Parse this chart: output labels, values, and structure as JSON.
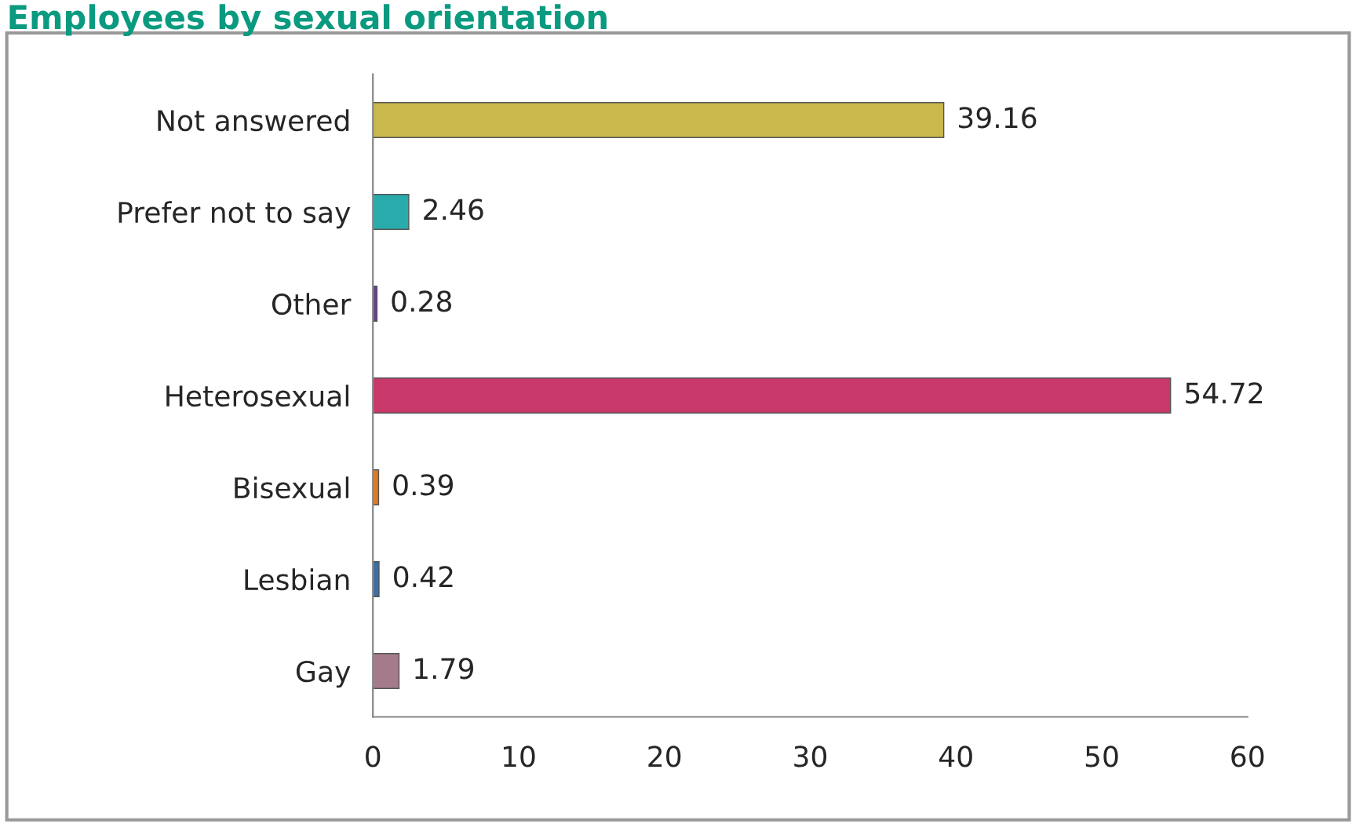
{
  "chart_data": {
    "type": "bar",
    "orientation": "horizontal",
    "title": "Employees by sexual orientation",
    "categories": [
      "Not answered",
      "Prefer not to say",
      "Other",
      "Heterosexual",
      "Bisexual",
      "Lesbian",
      "Gay"
    ],
    "values": [
      39.16,
      2.46,
      0.28,
      54.72,
      0.39,
      0.42,
      1.79
    ],
    "colors": [
      "#c9b94c",
      "#2aabab",
      "#6b3f8f",
      "#c9386a",
      "#e07b22",
      "#3b6ea3",
      "#a57b8c"
    ],
    "data_labels": true,
    "xlim": [
      0,
      60
    ],
    "xticks": [
      0,
      10,
      20,
      30,
      40,
      50,
      60
    ],
    "grid": false
  }
}
